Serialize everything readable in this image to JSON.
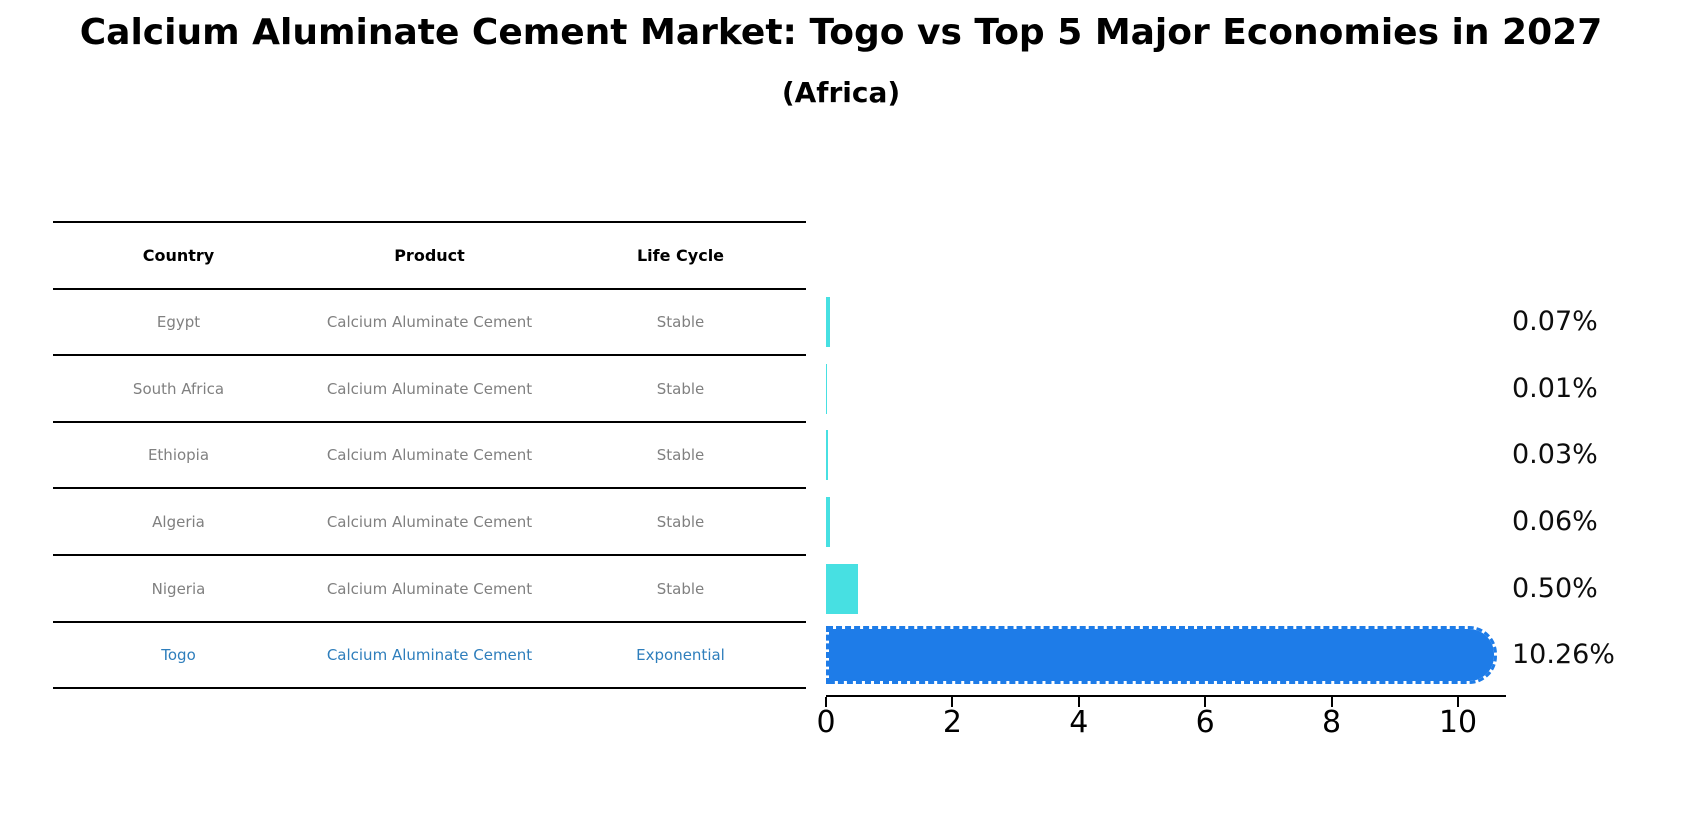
{
  "title": "Calcium Aluminate Cement Market: Togo vs Top 5 Major Economies in 2027",
  "subtitle": "(Africa)",
  "table": {
    "headers": [
      "Country",
      "Product",
      "Life Cycle"
    ],
    "rows": [
      {
        "country": "Egypt",
        "product": "Calcium Aluminate Cement",
        "life_cycle": "Stable",
        "highlight": false
      },
      {
        "country": "South Africa",
        "product": "Calcium Aluminate Cement",
        "life_cycle": "Stable",
        "highlight": false
      },
      {
        "country": "Ethiopia",
        "product": "Calcium Aluminate Cement",
        "life_cycle": "Stable",
        "highlight": false
      },
      {
        "country": "Algeria",
        "product": "Calcium Aluminate Cement",
        "life_cycle": "Stable",
        "highlight": false
      },
      {
        "country": "Nigeria",
        "product": "Calcium Aluminate Cement",
        "life_cycle": "Stable",
        "highlight": false
      },
      {
        "country": "Togo",
        "product": "Calcium Aluminate Cement",
        "life_cycle": "Exponential",
        "highlight": true
      }
    ]
  },
  "chart_data": {
    "type": "bar",
    "orientation": "horizontal",
    "title": "Calcium Aluminate Cement Market: Togo vs Top 5 Major Economies in 2027",
    "subtitle": "(Africa)",
    "categories": [
      "Egypt",
      "South Africa",
      "Ethiopia",
      "Algeria",
      "Nigeria",
      "Togo"
    ],
    "values": [
      0.07,
      0.01,
      0.03,
      0.06,
      0.5,
      10.26
    ],
    "value_labels": [
      "0.07%",
      "0.01%",
      "0.03%",
      "0.06%",
      "0.50%",
      "10.26%"
    ],
    "xlabel": "",
    "ylabel": "",
    "x_ticks": [
      "0",
      "2",
      "4",
      "6",
      "8",
      "10"
    ],
    "x_tick_values": [
      0,
      2,
      4,
      6,
      8,
      10
    ],
    "xlim": [
      0,
      10.76
    ],
    "grid": false,
    "legend": "none",
    "highlight_index": 5,
    "highlight_style": "rounded-right-cap-dashed-edge"
  },
  "colors": {
    "title_text": "#000000",
    "row_text": "#808080",
    "highlight_row_text": "#2E7EBC",
    "bar_default": "#47E0E2",
    "bar_highlight": "#1E7CE8",
    "axis": "#000000",
    "value_label_text": "#0d0d0d"
  }
}
